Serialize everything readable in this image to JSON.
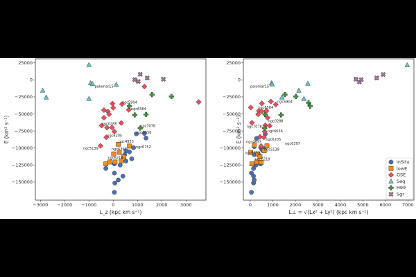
{
  "chart_data": [
    {
      "type": "scatter",
      "title": "",
      "xlabel": "L_z (kpc km s⁻¹)",
      "ylabel": "E (km² s⁻²)",
      "xlim": [
        -3300,
        3800
      ],
      "ylim": [
        -172000,
        29000
      ],
      "xticks": [
        "−3000",
        "−2000",
        "−1000",
        "0",
        "1000",
        "2000",
        "3000"
      ],
      "xtick_values": [
        -3000,
        -2000,
        -1000,
        0,
        1000,
        2000,
        3000
      ],
      "yticks": [
        "25000",
        "0",
        "−25000",
        "−50000",
        "−75000",
        "−100000",
        "−125000",
        "−150000"
      ],
      "ytick_values": [
        25000,
        0,
        -25000,
        -50000,
        -75000,
        -100000,
        -125000,
        -150000
      ],
      "series": [
        {
          "name": "inSitu",
          "points": [
            [
              -305,
              -130000
            ],
            [
              48,
              -123300
            ],
            [
              286,
              -125000
            ],
            [
              524,
              -119200
            ],
            [
              762,
              -115900
            ],
            [
              48,
              -136900
            ],
            [
              400,
              -141300
            ],
            [
              210,
              -147000
            ],
            [
              67,
              -151400
            ],
            [
              48,
              -165000
            ],
            [
              524,
              -104000
            ],
            [
              667,
              -105700
            ],
            [
              838,
              -99600
            ],
            [
              1352,
              -85400
            ],
            [
              952,
              -79300
            ],
            [
              1286,
              -78600
            ],
            [
              476,
              -109800
            ]
          ]
        },
        {
          "name": "lowE",
          "points": [
            [
              210,
              -94500
            ],
            [
              667,
              -97200
            ],
            [
              19,
              -108700
            ],
            [
              248,
              -106400
            ],
            [
              438,
              -113100
            ],
            [
              -143,
              -120600
            ],
            [
              -305,
              -123300
            ],
            [
              76,
              -120600
            ],
            [
              333,
              -119200
            ]
          ]
        },
        {
          "name": "GSE",
          "points": [
            [
              1286,
              -9800
            ],
            [
              3524,
              -32500
            ],
            [
              -29,
              -34900
            ],
            [
              362,
              -35600
            ],
            [
              0,
              -41000
            ],
            [
              -381,
              -44400
            ],
            [
              -219,
              -46400
            ],
            [
              -171,
              -50500
            ],
            [
              -381,
              -55600
            ],
            [
              333,
              -63300
            ],
            [
              -476,
              -67100
            ],
            [
              -257,
              -70100
            ],
            [
              -48,
              -70100
            ],
            [
              48,
              -75900
            ],
            [
              -286,
              -84300
            ],
            [
              -524,
              -96900
            ],
            [
              638,
              -44000
            ]
          ]
        },
        {
          "name": "Seq",
          "points": [
            [
              -1000,
              22000
            ],
            [
              -933,
              -4700
            ],
            [
              -857,
              -5800
            ],
            [
              -2905,
              -15600
            ],
            [
              -2762,
              -25700
            ],
            [
              -1000,
              -27800
            ],
            [
              124,
              -7100
            ]
          ]
        },
        {
          "name": "H99",
          "points": [
            [
              667,
              -38600
            ],
            [
              1600,
              -21700
            ],
            [
              2400,
              -24400
            ],
            [
              886,
              -51500
            ],
            [
              1352,
              -50800
            ],
            [
              1114,
              -70800
            ]
          ]
        },
        {
          "name": "Sgr",
          "points": [
            [
              1114,
              8100
            ],
            [
              886,
              300
            ],
            [
              1029,
              -2400
            ],
            [
              1400,
              2700
            ],
            [
              2067,
              1000
            ]
          ]
        }
      ],
      "annotations": [
        {
          "text": "palomar15",
          "at": [
            -762,
            -9800
          ]
        },
        {
          "text": "ngc5904",
          "at": [
            362,
            -32900
          ]
        },
        {
          "text": "ngc6584",
          "at": [
            733,
            -42700
          ]
        },
        {
          "text": "ngc0288",
          "at": [
            -476,
            -64400
          ]
        },
        {
          "text": "ngc7078",
          "at": [
            1114,
            -67400
          ]
        },
        {
          "text": "ngc6656",
          "at": [
            952,
            -76900
          ]
        },
        {
          "text": "ngc6205",
          "at": [
            -257,
            -81600
          ]
        },
        {
          "text": "ngc4833",
          "at": [
            219,
            -90100
          ]
        },
        {
          "text": "ngc6397",
          "at": [
            -67,
            -101300
          ]
        },
        {
          "text": "ngc6752",
          "at": [
            933,
            -98600
          ]
        },
        {
          "text": "ngc5139",
          "at": [
            -1238,
            -100300
          ]
        },
        {
          "text": "ngc6218",
          "at": [
            -219,
            -114200
          ]
        }
      ]
    },
    {
      "type": "scatter",
      "title": "",
      "xlabel": "L⊥ = √(Lx² + Ly²) (kpc km s⁻¹)",
      "ylabel": "E (km² s⁻²)",
      "xlim": [
        -300,
        7300
      ],
      "ylim": [
        -172000,
        29000
      ],
      "xticks": [
        "0",
        "1000",
        "2000",
        "3000",
        "4000",
        "5000",
        "6000",
        "7000"
      ],
      "xtick_values": [
        0,
        1000,
        2000,
        3000,
        4000,
        5000,
        6000,
        7000
      ],
      "yticks": [
        "25000",
        "0",
        "−25000",
        "−50000",
        "−75000",
        "−100000",
        "−125000",
        "−150000"
      ],
      "ytick_values": [
        25000,
        0,
        -25000,
        -50000,
        -75000,
        -100000,
        -125000,
        -150000
      ],
      "legend": {
        "placement": "bottom-right",
        "entries": [
          "inSitu",
          "lowE",
          "GSE",
          "Seq",
          "H99",
          "Sgr"
        ]
      },
      "series": [
        {
          "name": "inSitu",
          "points": [
            [
              51,
              -165000
            ],
            [
              144,
              -151400
            ],
            [
              175,
              -147000
            ],
            [
              144,
              -141300
            ],
            [
              51,
              -136900
            ],
            [
              144,
              -130100
            ],
            [
              257,
              -125000
            ],
            [
              462,
              -123300
            ],
            [
              175,
              -97900
            ],
            [
              277,
              -86000
            ],
            [
              667,
              -79300
            ],
            [
              462,
              -99600
            ],
            [
              534,
              -103000
            ],
            [
              616,
              -101300
            ],
            [
              175,
              -109800
            ],
            [
              380,
              -110400
            ]
          ]
        },
        {
          "name": "lowE",
          "points": [
            [
              72,
              -123300
            ],
            [
              277,
              -120600
            ],
            [
              483,
              -121000
            ],
            [
              175,
              -95500
            ],
            [
              739,
              -96900
            ],
            [
              616,
              -104000
            ],
            [
              21,
              -106400
            ],
            [
              329,
              -109100
            ],
            [
              431,
              -113100
            ]
          ]
        },
        {
          "name": "GSE",
          "points": [
            [
              21,
              -40600
            ],
            [
              72,
              -63000
            ],
            [
              914,
              -31800
            ],
            [
              513,
              -34600
            ],
            [
              1129,
              -36200
            ],
            [
              380,
              -45400
            ],
            [
              513,
              -46400
            ],
            [
              719,
              -45400
            ],
            [
              349,
              -50500
            ],
            [
              770,
              -55600
            ],
            [
              667,
              -66700
            ],
            [
              862,
              -67400
            ],
            [
              637,
              -75900
            ],
            [
              431,
              -83700
            ],
            [
              606,
              -84300
            ],
            [
              483,
              -97200
            ]
          ]
        },
        {
          "name": "Seq",
          "points": [
            [
              6971,
              21700
            ],
            [
              945,
              -4700
            ],
            [
              965,
              -6400
            ],
            [
              2556,
              -5400
            ],
            [
              2156,
              -15600
            ],
            [
              1407,
              -25700
            ],
            [
              2382,
              -27800
            ]
          ]
        },
        {
          "name": "H99",
          "points": [
            [
              1540,
              -21700
            ],
            [
              2023,
              -24400
            ],
            [
              2587,
              -33500
            ],
            [
              2659,
              -38600
            ],
            [
              1366,
              -51500
            ],
            [
              657,
              -50800
            ],
            [
              637,
              -70800
            ]
          ]
        },
        {
          "name": "Sgr",
          "points": [
            [
              4692,
              1000
            ],
            [
              4846,
              -3000
            ],
            [
              4928,
              300
            ],
            [
              5616,
              2700
            ],
            [
              5903,
              7800
            ]
          ]
        }
      ],
      "annotations": [
        {
          "text": "palomar15",
          "at": [
            0,
            -9800
          ]
        },
        {
          "text": "ngc5904",
          "at": [
            1201,
            -31800
          ]
        },
        {
          "text": "ngc6584",
          "at": [
            349,
            -40300
          ]
        },
        {
          "text": "ngc0288",
          "at": [
            791,
            -60600
          ]
        },
        {
          "text": "ngc7078",
          "at": [
            -154,
            -68400
          ]
        },
        {
          "text": "ngc6656",
          "at": [
            770,
            -75200
          ]
        },
        {
          "text": "ngc6205",
          "at": [
            688,
            -87100
          ]
        },
        {
          "text": "ngc4833",
          "at": [
            -185,
            -91100
          ]
        },
        {
          "text": "ngc6397",
          "at": [
            1540,
            -93500
          ]
        },
        {
          "text": "ngc5139",
          "at": [
            616,
            -102000
          ]
        },
        {
          "text": "ngc6752",
          "at": [
            -236,
            -107000
          ]
        },
        {
          "text": "ngc6218",
          "at": [
            205,
            -116500
          ]
        }
      ]
    }
  ],
  "colors": {
    "inSitu": "#4c72b0",
    "lowE": "#f28e1c",
    "GSE": "#e8505b",
    "Seq": "#6ec4c4",
    "H99": "#3b9a3b",
    "Sgr": "#b4789e"
  },
  "markers": {
    "inSitu": "circle",
    "lowE": "square",
    "GSE": "diamond",
    "Seq": "triangle",
    "H99": "plus",
    "Sgr": "x"
  }
}
